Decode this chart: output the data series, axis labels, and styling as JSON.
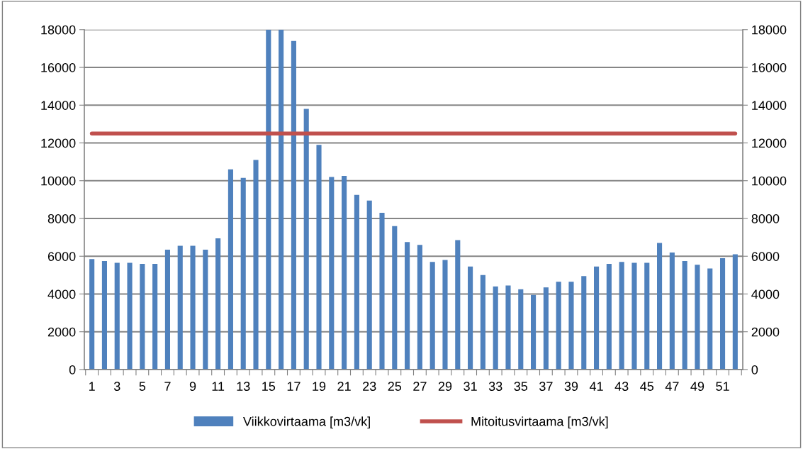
{
  "chart_data": {
    "type": "bar",
    "categories": [
      "1",
      null,
      "3",
      null,
      "5",
      null,
      "7",
      null,
      "9",
      null,
      "11",
      null,
      "13",
      null,
      "15",
      null,
      "17",
      null,
      "19",
      null,
      "21",
      null,
      "23",
      null,
      "25",
      null,
      "27",
      null,
      "29",
      null,
      "31",
      null,
      "33",
      null,
      "35",
      null,
      "37",
      null,
      "39",
      null,
      "41",
      null,
      "43",
      null,
      "45",
      null,
      "47",
      null,
      "49",
      null,
      "51",
      null
    ],
    "series": [
      {
        "name": "Viikkovirtaama [m3/vk]",
        "color": "#4f81bd",
        "values": [
          5850,
          5750,
          5650,
          5650,
          5600,
          5600,
          6350,
          6550,
          6550,
          6350,
          6950,
          10600,
          10150,
          11100,
          18000,
          18000,
          17400,
          13800,
          11900,
          10200,
          10250,
          9250,
          8950,
          8300,
          7600,
          6750,
          6600,
          5700,
          5800,
          6850,
          5450,
          5000,
          4400,
          4450,
          4250,
          3950,
          4350,
          4650,
          4650,
          4950,
          5450,
          5600,
          5700,
          5650,
          5650,
          6700,
          6200,
          5750,
          5550,
          5350,
          5900,
          6100
        ]
      },
      {
        "name": "Mitoitusvirtaama [m3/vk]",
        "type": "line",
        "axis": "y2",
        "color": "#c0504d",
        "values": [
          12500,
          12500,
          12500,
          12500,
          12500,
          12500,
          12500,
          12500,
          12500,
          12500,
          12500,
          12500,
          12500,
          12500,
          12500,
          12500,
          12500,
          12500,
          12500,
          12500,
          12500,
          12500,
          12500,
          12500,
          12500,
          12500,
          12500,
          12500,
          12500,
          12500,
          12500,
          12500,
          12500,
          12500,
          12500,
          12500,
          12500,
          12500,
          12500,
          12500,
          12500,
          12500,
          12500,
          12500,
          12500,
          12500,
          12500,
          12500,
          12500,
          12500,
          12500,
          12500
        ]
      }
    ],
    "ylim": [
      0,
      18000
    ],
    "yticks": [
      0,
      2000,
      4000,
      6000,
      8000,
      10000,
      12000,
      14000,
      16000,
      18000
    ],
    "y2lim": [
      0,
      18000
    ],
    "y2ticks": [
      0,
      2000,
      4000,
      6000,
      8000,
      10000,
      12000,
      14000,
      16000,
      18000
    ],
    "grid": "y",
    "legend": "bottom",
    "marker": "none",
    "line_style": "solid"
  }
}
